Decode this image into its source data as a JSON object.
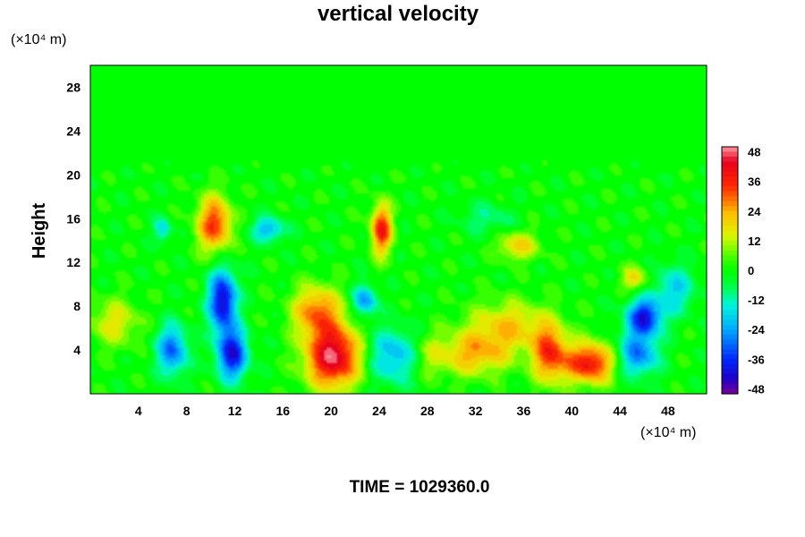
{
  "chart_data": {
    "type": "heatmap",
    "title": "vertical velocity",
    "ylabel": "Height",
    "xlabel": "",
    "x_unit": "(×10⁴ m)",
    "y_unit": "(×10⁴ m)",
    "xlim": [
      0,
      51.2
    ],
    "ylim": [
      0,
      30
    ],
    "x_ticks": [
      "4",
      "8",
      "12",
      "16",
      "20",
      "24",
      "28",
      "32",
      "36",
      "40",
      "44",
      "48"
    ],
    "y_ticks": [
      "4",
      "8",
      "12",
      "16",
      "20",
      "24",
      "28"
    ],
    "colorbar": {
      "range": [
        -50,
        50
      ],
      "ticks": [
        "48",
        "36",
        "24",
        "12",
        "0",
        "-12",
        "-24",
        "-36",
        "-48"
      ]
    },
    "grid": false,
    "features": [
      {
        "x": 10.3,
        "y": 15.5,
        "value": 34,
        "sx": 1.0,
        "sy": 1.8
      },
      {
        "x": 24.2,
        "y": 15.0,
        "value": 38,
        "sx": 0.6,
        "sy": 1.6
      },
      {
        "x": 20.2,
        "y": 3.4,
        "value": 48,
        "sx": 1.6,
        "sy": 2.0
      },
      {
        "x": 18.8,
        "y": 7.6,
        "value": 28,
        "sx": 1.4,
        "sy": 1.6
      },
      {
        "x": 41.5,
        "y": 2.8,
        "value": 40,
        "sx": 1.4,
        "sy": 1.3
      },
      {
        "x": 38.2,
        "y": 3.6,
        "value": 33,
        "sx": 1.0,
        "sy": 1.8
      },
      {
        "x": 31.8,
        "y": 3.6,
        "value": 22,
        "sx": 2.2,
        "sy": 1.4
      },
      {
        "x": 34.8,
        "y": 6.2,
        "value": 20,
        "sx": 2.4,
        "sy": 1.6
      },
      {
        "x": 35.5,
        "y": 13.5,
        "value": 20,
        "sx": 1.2,
        "sy": 0.9
      },
      {
        "x": 2.0,
        "y": 6.5,
        "value": 16,
        "sx": 1.5,
        "sy": 1.5
      },
      {
        "x": 45.2,
        "y": 10.5,
        "value": 18,
        "sx": 0.8,
        "sy": 0.8
      },
      {
        "x": 11.0,
        "y": 8.5,
        "value": -44,
        "sx": 0.8,
        "sy": 2.0
      },
      {
        "x": 11.8,
        "y": 3.6,
        "value": -40,
        "sx": 0.9,
        "sy": 1.6
      },
      {
        "x": 6.8,
        "y": 4.0,
        "value": -30,
        "sx": 0.9,
        "sy": 1.6
      },
      {
        "x": 46.0,
        "y": 7.0,
        "value": -40,
        "sx": 1.0,
        "sy": 1.2
      },
      {
        "x": 45.5,
        "y": 3.6,
        "value": -28,
        "sx": 1.2,
        "sy": 1.4
      },
      {
        "x": 25.2,
        "y": 3.5,
        "value": -22,
        "sx": 1.6,
        "sy": 1.8
      },
      {
        "x": 22.8,
        "y": 8.5,
        "value": -26,
        "sx": 0.7,
        "sy": 1.0
      },
      {
        "x": 14.8,
        "y": 15.0,
        "value": -22,
        "sx": 1.0,
        "sy": 0.8
      },
      {
        "x": 6.0,
        "y": 15.0,
        "value": -18,
        "sx": 0.5,
        "sy": 0.8
      },
      {
        "x": 48.5,
        "y": 9.5,
        "value": -18,
        "sx": 1.2,
        "sy": 1.6
      },
      {
        "x": 33.0,
        "y": 16.0,
        "value": -10,
        "sx": 1.5,
        "sy": 1.0
      },
      {
        "x": 28.0,
        "y": 3.5,
        "value": 10,
        "sx": 1.0,
        "sy": 1.5
      }
    ],
    "annotation": "TIME = 1029360.0"
  }
}
